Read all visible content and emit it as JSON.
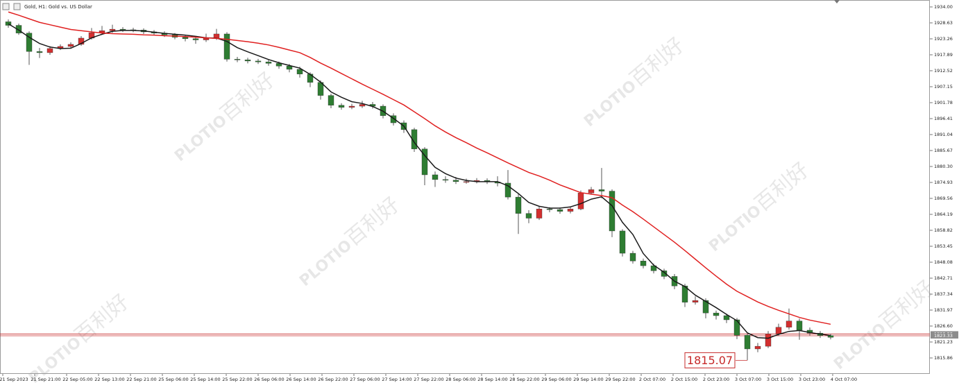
{
  "chart_data": {
    "type": "candlestick",
    "title": "Gold, H1:  Gold vs. US Dollar",
    "time_labels": [
      "21 Sep 2023",
      "21 Sep 21:00",
      "22 Sep 05:00",
      "22 Sep 13:00",
      "22 Sep 21:00",
      "25 Sep 06:00",
      "25 Sep 14:00",
      "25 Sep 22:00",
      "26 Sep 06:00",
      "26 Sep 14:00",
      "26 Sep 22:00",
      "27 Sep 06:00",
      "27 Sep 14:00",
      "27 Sep 22:00",
      "28 Sep 06:00",
      "28 Sep 14:00",
      "28 Sep 22:00",
      "29 Sep 06:00",
      "29 Sep 14:00",
      "29 Sep 22:00",
      "2 Oct 07:00",
      "2 Oct 15:00",
      "2 Oct 23:00",
      "3 Oct 07:00",
      "3 Oct 15:00",
      "3 Oct 23:00",
      "4 Oct 07:00"
    ],
    "open": [
      1929.0,
      1927.8,
      1925.2,
      1919.0,
      1918.6,
      1920.0,
      1920.7,
      1921.4,
      1923.5,
      1925.3,
      1926.0,
      1926.5,
      1926.3,
      1926.2,
      1925.6,
      1925.2,
      1924.6,
      1923.8,
      1923.3,
      1922.9,
      1923.5,
      1924.9,
      1916.4,
      1916.2,
      1915.8,
      1915.5,
      1915.0,
      1914.1,
      1913.0,
      1911.4,
      1908.6,
      1904.2,
      1900.9,
      1900.2,
      1900.6,
      1901.2,
      1900.6,
      1897.4,
      1895.0,
      1892.7,
      1886.2,
      1877.5,
      1875.9,
      1875.7,
      1875.2,
      1875.2,
      1875.6,
      1875.1,
      1874.7,
      1870.0,
      1864.5,
      1862.9,
      1866.0,
      1865.8,
      1865.2,
      1866.0,
      1871.4,
      1872.5,
      1872.0,
      1858.6,
      1851.1,
      1848.5,
      1846.9,
      1845.2,
      1843.3,
      1840.1,
      1834.6,
      1835.2,
      1831.0,
      1830.1,
      1828.7,
      1823.5,
      1818.9,
      1819.8,
      1824.0,
      1826.2,
      1828.3,
      1825.2,
      1824.2,
      1823.4
    ],
    "high": [
      1929.8,
      1928.4,
      1925.8,
      1920.2,
      1920.8,
      1921.4,
      1922.1,
      1924.2,
      1926.9,
      1927.6,
      1928.0,
      1927.2,
      1927.0,
      1926.8,
      1926.2,
      1925.8,
      1925.2,
      1924.4,
      1924.0,
      1925.0,
      1926.6,
      1925.5,
      1917.2,
      1916.9,
      1916.5,
      1916.2,
      1915.6,
      1914.8,
      1913.9,
      1912.0,
      1909.3,
      1904.8,
      1901.6,
      1901.4,
      1902.4,
      1902.0,
      1901.2,
      1898.2,
      1895.8,
      1893.3,
      1886.8,
      1878.6,
      1877.0,
      1876.8,
      1876.2,
      1876.4,
      1876.3,
      1877.0,
      1879.1,
      1871.0,
      1865.6,
      1866.9,
      1866.6,
      1866.5,
      1866.8,
      1872.2,
      1873.4,
      1879.8,
      1872.6,
      1859.2,
      1851.9,
      1849.3,
      1847.6,
      1845.9,
      1844.1,
      1840.8,
      1836.6,
      1835.9,
      1831.8,
      1830.8,
      1829.3,
      1824.0,
      1820.9,
      1824.9,
      1827.4,
      1832.5,
      1829.1,
      1826.1,
      1824.9,
      1824.0
    ],
    "low": [
      1927.0,
      1924.6,
      1914.5,
      1916.8,
      1917.9,
      1919.5,
      1920.0,
      1920.9,
      1923.0,
      1924.6,
      1925.3,
      1925.6,
      1925.5,
      1924.9,
      1924.5,
      1923.9,
      1923.1,
      1922.4,
      1921.6,
      1922.2,
      1922.9,
      1915.6,
      1915.4,
      1915.0,
      1914.8,
      1914.2,
      1913.2,
      1912.0,
      1910.2,
      1907.0,
      1902.8,
      1899.9,
      1899.4,
      1899.6,
      1900.0,
      1899.8,
      1896.5,
      1894.1,
      1891.6,
      1885.2,
      1874.0,
      1873.4,
      1874.8,
      1874.4,
      1874.5,
      1874.6,
      1874.4,
      1873.6,
      1869.2,
      1857.6,
      1861.2,
      1862.3,
      1864.9,
      1864.4,
      1864.5,
      1865.6,
      1870.8,
      1869.6,
      1856.5,
      1850.0,
      1847.6,
      1846.0,
      1844.3,
      1842.4,
      1839.0,
      1833.0,
      1833.8,
      1829.2,
      1828.8,
      1827.6,
      1822.2,
      1815.07,
      1817.8,
      1819.2,
      1823.3,
      1825.4,
      1822.0,
      1823.4,
      1822.6,
      1822.1
    ],
    "close": [
      1927.8,
      1925.2,
      1919.0,
      1918.6,
      1920.0,
      1920.7,
      1921.4,
      1923.5,
      1925.3,
      1926.0,
      1926.5,
      1926.3,
      1926.2,
      1925.6,
      1925.2,
      1924.6,
      1923.8,
      1923.3,
      1922.9,
      1923.5,
      1924.9,
      1916.4,
      1916.2,
      1915.8,
      1915.5,
      1915.0,
      1914.1,
      1913.0,
      1911.4,
      1908.6,
      1904.2,
      1900.9,
      1900.2,
      1900.6,
      1901.2,
      1900.6,
      1897.4,
      1895.0,
      1892.7,
      1886.2,
      1877.5,
      1875.9,
      1875.7,
      1875.2,
      1875.2,
      1875.6,
      1875.1,
      1874.7,
      1870.0,
      1864.5,
      1862.9,
      1866.0,
      1865.8,
      1865.2,
      1866.0,
      1871.4,
      1872.5,
      1872.0,
      1858.6,
      1851.1,
      1848.5,
      1846.9,
      1845.2,
      1843.3,
      1840.1,
      1834.6,
      1835.2,
      1831.0,
      1830.1,
      1828.7,
      1823.5,
      1818.9,
      1819.8,
      1824.0,
      1826.2,
      1828.3,
      1825.2,
      1824.2,
      1823.4,
      1822.8
    ],
    "up_color": "#d32f2f",
    "down_color": "#2e7d32",
    "wick_color": "#555555",
    "moving_averages": [
      {
        "color": "#1a1a1a",
        "values": [
          1928.3,
          1926.2,
          1923.8,
          1921.7,
          1920.5,
          1920.0,
          1920.1,
          1921.7,
          1923.6,
          1924.8,
          1925.8,
          1926.1,
          1926.1,
          1925.9,
          1925.5,
          1925.1,
          1924.8,
          1924.5,
          1924.1,
          1923.6,
          1923.5,
          1922.4,
          1920.3,
          1918.9,
          1917.6,
          1916.3,
          1915.2,
          1914.3,
          1913.4,
          1911.3,
          1908.7,
          1905.4,
          1903.6,
          1902.1,
          1901.5,
          1900.5,
          1898.9,
          1896.5,
          1893.9,
          1888.4,
          1884.0,
          1880.0,
          1877.9,
          1876.4,
          1875.6,
          1875.2,
          1875.2,
          1875.2,
          1873.8,
          1871.2,
          1868.2,
          1866.9,
          1866.3,
          1866.3,
          1866.7,
          1867.8,
          1869.3,
          1870.1,
          1867.1,
          1861.5,
          1857.4,
          1851.0,
          1847.1,
          1844.7,
          1841.7,
          1839.9,
          1837.0,
          1834.9,
          1832.8,
          1830.5,
          1828.4,
          1824.3,
          1822.7,
          1822.5,
          1823.8,
          1824.8,
          1825.1,
          1824.4,
          1823.9,
          1823.4
        ]
      },
      {
        "color": "#e02020",
        "values": [
          1932.3,
          1931.2,
          1930.0,
          1928.8,
          1928.0,
          1927.2,
          1926.4,
          1926.0,
          1925.6,
          1925.2,
          1925.0,
          1924.9,
          1924.8,
          1924.6,
          1924.5,
          1924.3,
          1924.2,
          1924.0,
          1923.8,
          1923.6,
          1923.4,
          1923.1,
          1922.7,
          1922.3,
          1921.8,
          1921.2,
          1920.4,
          1919.5,
          1918.6,
          1917.0,
          1915.1,
          1913.4,
          1911.6,
          1909.8,
          1908.0,
          1906.3,
          1904.6,
          1902.8,
          1901.0,
          1898.7,
          1896.4,
          1894.0,
          1891.9,
          1890.0,
          1888.3,
          1886.5,
          1884.9,
          1883.2,
          1881.5,
          1879.9,
          1878.3,
          1877.1,
          1875.7,
          1874.1,
          1872.8,
          1871.5,
          1871.0,
          1870.5,
          1869.8,
          1867.3,
          1865.1,
          1862.6,
          1860.0,
          1857.4,
          1854.8,
          1852.0,
          1849.1,
          1846.2,
          1843.4,
          1840.7,
          1838.3,
          1836.5,
          1834.7,
          1833.2,
          1831.9,
          1830.7,
          1829.5,
          1828.6,
          1827.9,
          1827.2
        ]
      }
    ],
    "low_annotation": 1815.07,
    "price_lines": [
      1823.93,
      1823.33
    ],
    "price_line_color": "#c62828",
    "ylim": [
      1810.49,
      1936.33
    ],
    "yticks": [
      {
        "value": 1934,
        "label": "1934.00"
      },
      1928.63,
      1923.26,
      1917.89,
      1912.52,
      1907.15,
      1901.78,
      1896.41,
      1891.04,
      1885.67,
      {
        "value": 1880.3,
        "label": "1880.30"
      },
      1874.93,
      1869.56,
      1864.19,
      1858.82,
      1853.45,
      1848.08,
      1842.71,
      1837.34,
      1831.97,
      {
        "value": 1826.6,
        "label": "1826.60"
      },
      1821.23,
      1815.86
    ],
    "watermark_brand": "PLOTIO",
    "watermark_cn": "百利好"
  }
}
